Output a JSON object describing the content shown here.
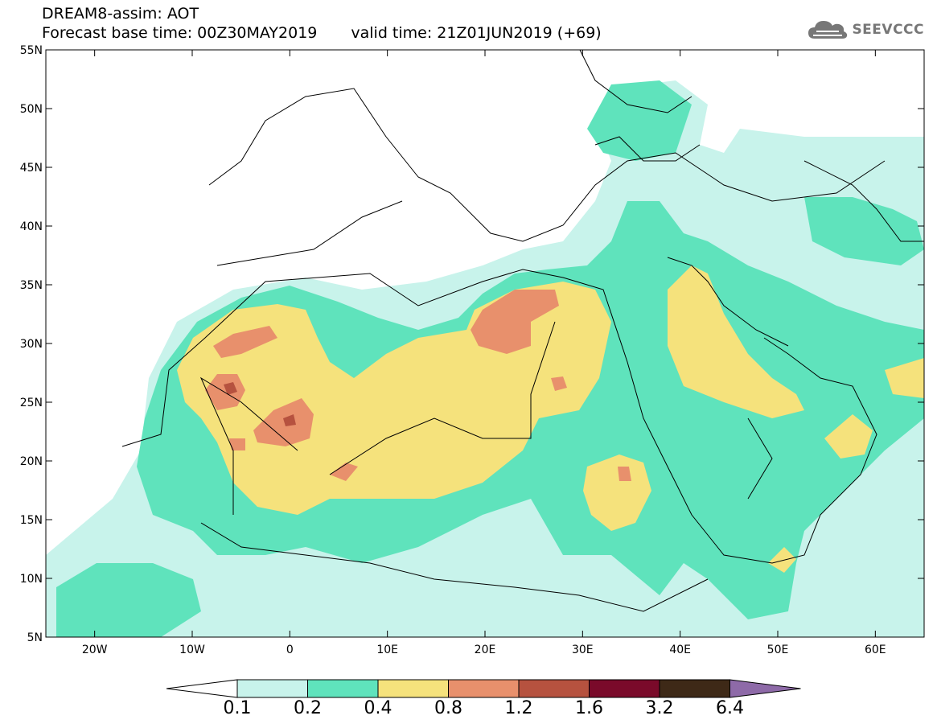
{
  "header": {
    "title": "DREAM8-assim: AOT",
    "base_time_label": "Forecast base time: 00Z30MAY2019",
    "valid_time_label": "valid time: 21Z01JUN2019 (+69)"
  },
  "logo": {
    "text": "SEEVCCC",
    "icon": "cloud-icon"
  },
  "map": {
    "lon_range": [
      -25,
      65
    ],
    "lat_range": [
      5,
      55
    ],
    "lat_ticks": [
      "55N",
      "50N",
      "45N",
      "40N",
      "35N",
      "30N",
      "25N",
      "20N",
      "15N",
      "10N",
      "5N"
    ],
    "lon_ticks": [
      "20W",
      "10W",
      "0",
      "10E",
      "20E",
      "30E",
      "40E",
      "50E",
      "60E"
    ]
  },
  "colorbar": {
    "labels": [
      "0.1",
      "0.2",
      "0.4",
      "0.8",
      "1.2",
      "1.6",
      "3.2",
      "6.4"
    ],
    "colors": [
      "#c8f3eb",
      "#5fe3bc",
      "#f5e27c",
      "#e8906c",
      "#b6523f",
      "#7a0a2a",
      "#3e2917",
      "#8e6aa8"
    ]
  }
}
